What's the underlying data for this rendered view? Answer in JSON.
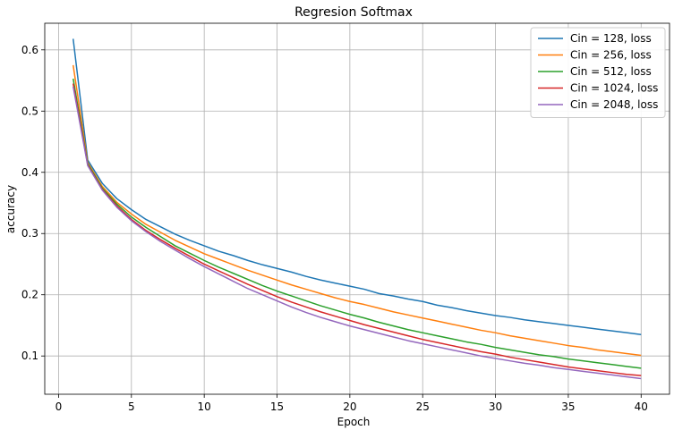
{
  "chart_data": {
    "type": "line",
    "title": "Regresion Softmax",
    "xlabel": "Epoch",
    "ylabel": "accuracy",
    "xlim": [
      -0.95,
      41.95
    ],
    "ylim": [
      0.0375,
      0.6435
    ],
    "xticks": [
      0,
      5,
      10,
      15,
      20,
      25,
      30,
      35,
      40
    ],
    "yticks": [
      0.1,
      0.2,
      0.3,
      0.4,
      0.5,
      0.6
    ],
    "grid": true,
    "legend_position": "top-right",
    "x": [
      1,
      2,
      3,
      4,
      5,
      6,
      7,
      8,
      9,
      10,
      11,
      12,
      13,
      14,
      15,
      16,
      17,
      18,
      19,
      20,
      21,
      22,
      23,
      24,
      25,
      26,
      27,
      28,
      29,
      30,
      31,
      32,
      33,
      34,
      35,
      36,
      37,
      38,
      39,
      40
    ],
    "series": [
      {
        "name": "Cin = 128, loss",
        "color": "#1f77b4",
        "values": [
          0.618,
          0.42,
          0.382,
          0.357,
          0.339,
          0.323,
          0.311,
          0.299,
          0.289,
          0.28,
          0.271,
          0.264,
          0.256,
          0.249,
          0.243,
          0.237,
          0.23,
          0.224,
          0.219,
          0.214,
          0.209,
          0.202,
          0.198,
          0.193,
          0.189,
          0.183,
          0.179,
          0.174,
          0.17,
          0.166,
          0.163,
          0.159,
          0.156,
          0.153,
          0.15,
          0.147,
          0.144,
          0.141,
          0.138,
          0.135
        ]
      },
      {
        "name": "Cin = 256, loss",
        "color": "#ff7f0e",
        "values": [
          0.575,
          0.416,
          0.377,
          0.351,
          0.332,
          0.315,
          0.302,
          0.289,
          0.278,
          0.267,
          0.258,
          0.249,
          0.24,
          0.232,
          0.224,
          0.216,
          0.209,
          0.202,
          0.195,
          0.189,
          0.184,
          0.178,
          0.172,
          0.167,
          0.162,
          0.157,
          0.152,
          0.147,
          0.142,
          0.138,
          0.133,
          0.129,
          0.125,
          0.121,
          0.117,
          0.114,
          0.11,
          0.107,
          0.104,
          0.101
        ]
      },
      {
        "name": "Cin = 512, loss",
        "color": "#2ca02c",
        "values": [
          0.553,
          0.414,
          0.374,
          0.348,
          0.327,
          0.31,
          0.295,
          0.28,
          0.268,
          0.256,
          0.245,
          0.235,
          0.225,
          0.215,
          0.206,
          0.198,
          0.19,
          0.182,
          0.175,
          0.168,
          0.162,
          0.155,
          0.149,
          0.143,
          0.138,
          0.133,
          0.128,
          0.123,
          0.119,
          0.114,
          0.11,
          0.106,
          0.102,
          0.099,
          0.095,
          0.092,
          0.089,
          0.086,
          0.083,
          0.08
        ]
      },
      {
        "name": "Cin = 1024, loss",
        "color": "#d62728",
        "values": [
          0.545,
          0.412,
          0.372,
          0.345,
          0.323,
          0.305,
          0.29,
          0.276,
          0.263,
          0.25,
          0.239,
          0.228,
          0.217,
          0.207,
          0.197,
          0.188,
          0.18,
          0.172,
          0.165,
          0.158,
          0.151,
          0.145,
          0.139,
          0.133,
          0.127,
          0.122,
          0.117,
          0.112,
          0.107,
          0.103,
          0.098,
          0.094,
          0.09,
          0.086,
          0.082,
          0.079,
          0.076,
          0.073,
          0.07,
          0.068
        ]
      },
      {
        "name": "Cin = 2048, loss",
        "color": "#9467bd",
        "values": [
          0.54,
          0.411,
          0.371,
          0.343,
          0.321,
          0.303,
          0.287,
          0.273,
          0.259,
          0.246,
          0.234,
          0.222,
          0.21,
          0.2,
          0.19,
          0.18,
          0.171,
          0.163,
          0.156,
          0.149,
          0.143,
          0.137,
          0.131,
          0.125,
          0.12,
          0.115,
          0.11,
          0.105,
          0.1,
          0.096,
          0.092,
          0.088,
          0.085,
          0.081,
          0.078,
          0.075,
          0.072,
          0.069,
          0.066,
          0.063
        ]
      }
    ]
  }
}
